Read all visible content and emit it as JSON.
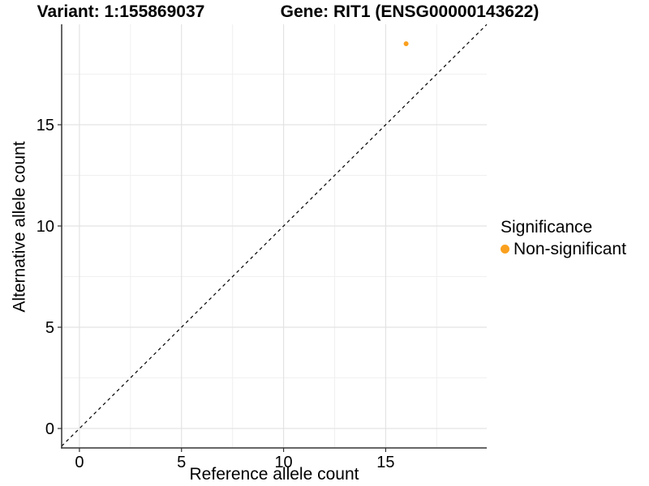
{
  "chart_data": {
    "type": "scatter",
    "titles": {
      "left": "Variant: 1:155869037",
      "right": "Gene: RIT1 (ENSG00000143622)"
    },
    "xlabel": "Reference allele count",
    "ylabel": "Alternative allele count",
    "x_ticks": [
      0,
      5,
      10,
      15
    ],
    "y_ticks": [
      0,
      5,
      10,
      15
    ],
    "x_minor_gridlines": [
      2.5,
      7.5,
      12.5,
      17.5
    ],
    "y_minor_gridlines": [
      2.5,
      7.5,
      12.5,
      17.5
    ],
    "xlim": [
      -0.87,
      19.95
    ],
    "ylim": [
      -0.96,
      19.96
    ],
    "grid": "on",
    "identity_line": {
      "style": "dashed",
      "color": "#000000"
    },
    "series": [
      {
        "name": "Non-significant",
        "color": "#FAA01E",
        "points": [
          {
            "x": 16,
            "y": 19
          }
        ]
      }
    ],
    "legend": {
      "title": "Significance",
      "position": "right",
      "entries": [
        {
          "label": "Non-significant",
          "color": "#FAA01E"
        }
      ]
    }
  },
  "colors": {
    "axis": "#333333",
    "grid_major": "#e3e3e3",
    "grid_minor": "#f0f0f0",
    "text": "#000000"
  }
}
